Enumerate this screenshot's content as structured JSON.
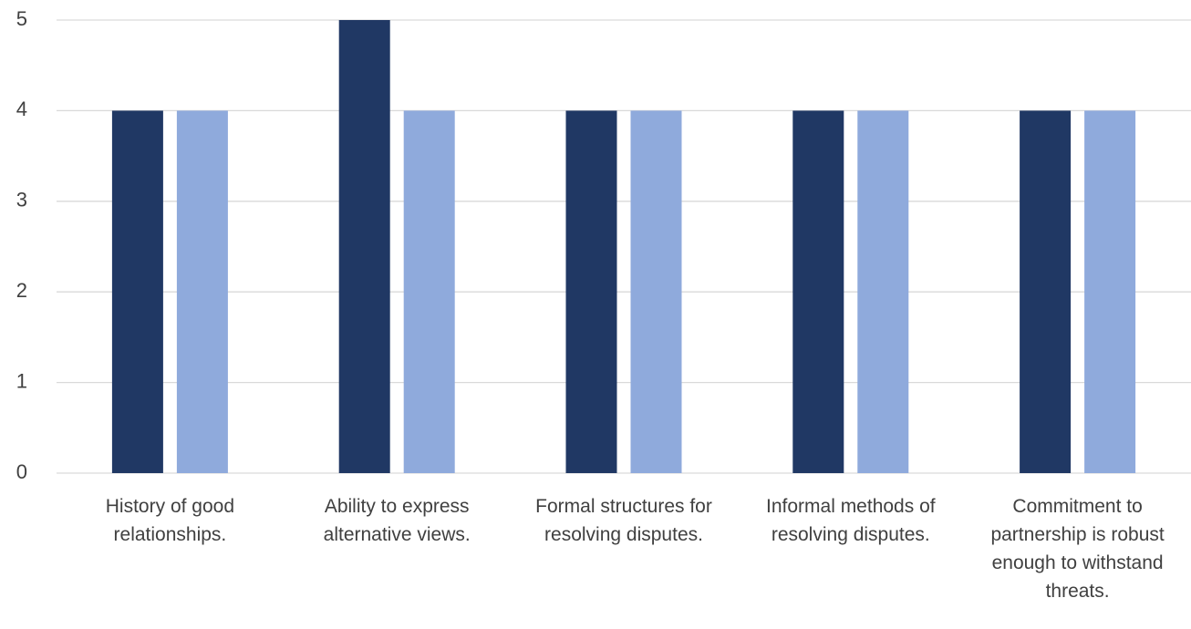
{
  "chart_data": {
    "type": "bar",
    "categories": [
      "History of good relationships.",
      "Ability to express alternative views.",
      "Formal structures for resolving disputes.",
      "Informal methods of resolving disputes.",
      "Commitment to partnership is robust enough to withstand threats."
    ],
    "series": [
      {
        "color": "#203864",
        "values": [
          4,
          5,
          4,
          4,
          4
        ]
      },
      {
        "color": "#8faadc",
        "values": [
          4,
          4,
          4,
          4,
          4
        ]
      }
    ],
    "ylim": [
      0,
      5
    ],
    "yticks": [
      0,
      1,
      2,
      3,
      4,
      5
    ],
    "grid": true
  }
}
